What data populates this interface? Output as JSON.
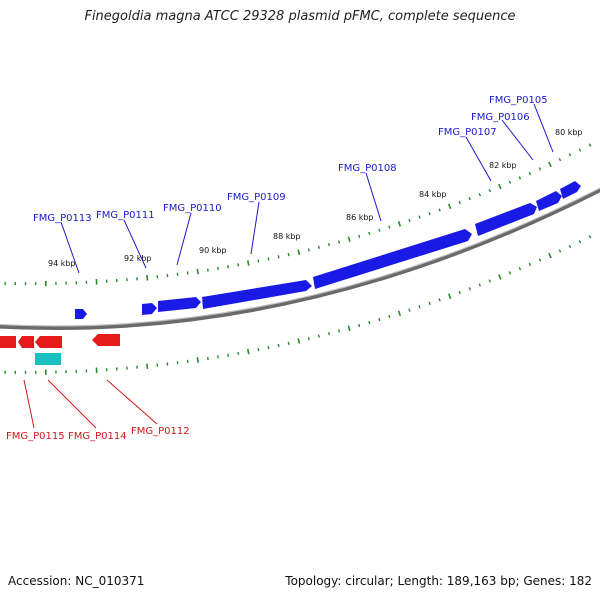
{
  "title": "Finegoldia magna ATCC 29328 plasmid pFMC, complete sequence",
  "footer": {
    "accession": "Accession: NC_010371",
    "summary": "Topology: circular; Length: 189,163 bp; Genes: 182"
  },
  "colors": {
    "forward": "#1a1ae6",
    "reverse": "#e61a1a",
    "rna": "#1abfbf",
    "backbone": "#8c8c8c",
    "ticks": "#2a8a2a",
    "label_forward": "#1a1acc",
    "label_reverse": "#cc1a1a"
  },
  "scale_labels": [
    "80 kbp",
    "82 kbp",
    "84 kbp",
    "86 kbp",
    "88 kbp",
    "90 kbp",
    "92 kbp",
    "94 kbp"
  ],
  "forward_labels": [
    "FMG_P0105",
    "FMG_P0106",
    "FMG_P0107",
    "FMG_P0108",
    "FMG_P0109",
    "FMG_P0110",
    "FMG_P0111",
    "FMG_P0113"
  ],
  "reverse_labels": [
    "FMG_P0112",
    "FMG_P0114",
    "FMG_P0115"
  ]
}
